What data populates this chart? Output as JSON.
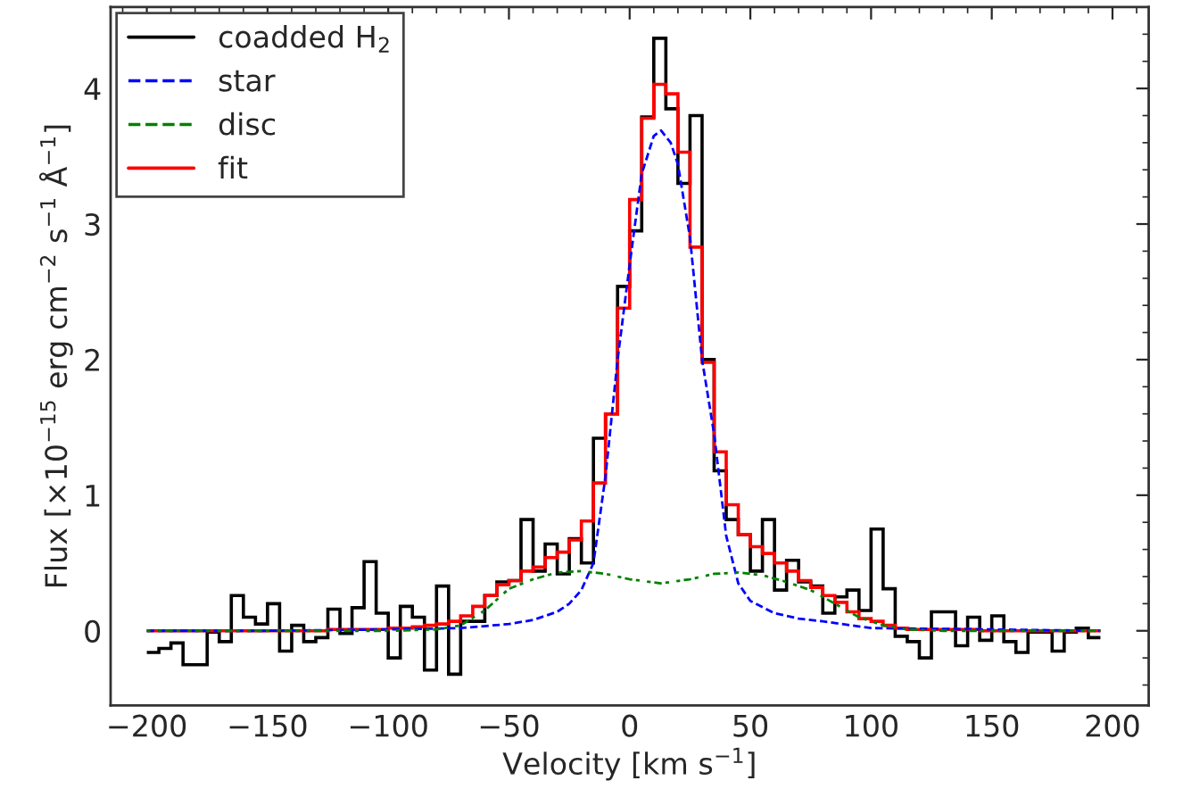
{
  "chart_data": {
    "type": "line",
    "xlabel": "Velocity [km s$^{−1}$]",
    "ylabel": "Flux [×10$^{−15}$ erg cm$^{−2}$ s$^{−1}$ Å$^{−1}$]",
    "xlim": [
      -215,
      215
    ],
    "ylim": [
      -0.55,
      4.6
    ],
    "xticks": [
      -200,
      -150,
      -100,
      -50,
      0,
      50,
      100,
      150,
      200
    ],
    "yticks": [
      0,
      1,
      2,
      3,
      4
    ],
    "legend": "top left",
    "grid": false,
    "series": [
      {
        "name": "coadded H$_{2}$",
        "type": "histogram",
        "color": "#000000",
        "line_style": "solid",
        "bins": [
          -200,
          -195,
          -190,
          -185,
          -180,
          -175,
          -170,
          -165,
          -160,
          -155,
          -150,
          -145,
          -140,
          -135,
          -130,
          -125,
          -120,
          -115,
          -110,
          -105,
          -100,
          -95,
          -90,
          -85,
          -80,
          -75,
          -70,
          -65,
          -60,
          -55,
          -50,
          -45,
          -40,
          -35,
          -30,
          -25,
          -20,
          -15,
          -10,
          -5,
          0,
          5,
          10,
          15,
          20,
          25,
          30,
          35,
          40,
          45,
          50,
          55,
          60,
          65,
          70,
          75,
          80,
          85,
          90,
          95,
          100,
          105,
          110,
          115,
          120,
          125,
          130,
          135,
          140,
          145,
          150,
          155,
          160,
          165,
          170,
          175,
          180,
          185,
          190,
          195
        ],
        "values": [
          -0.16,
          -0.13,
          -0.09,
          -0.25,
          -0.25,
          -0.01,
          -0.08,
          0.26,
          0.1,
          0.05,
          0.2,
          -0.15,
          0.04,
          -0.08,
          -0.05,
          0.16,
          -0.02,
          0.17,
          0.51,
          0.13,
          -0.2,
          0.18,
          0.1,
          -0.29,
          0.33,
          -0.32,
          0.07,
          0.07,
          0.26,
          0.36,
          0.37,
          0.82,
          0.44,
          0.64,
          0.42,
          0.68,
          0.5,
          1.42,
          1.6,
          2.54,
          2.95,
          3.79,
          4.37,
          3.85,
          3.3,
          3.8,
          2.0,
          1.18,
          0.82,
          0.71,
          0.44,
          0.82,
          0.3,
          0.52,
          0.36,
          0.33,
          0.13,
          0.25,
          0.3,
          0.15,
          0.75,
          0.31,
          -0.04,
          -0.08,
          -0.2,
          0.14,
          0.14,
          -0.11,
          0.1,
          -0.07,
          0.11,
          -0.08,
          -0.16,
          -0.01,
          -0.01,
          -0.15,
          -0.01,
          0.02,
          -0.05
        ]
      },
      {
        "name": "star",
        "color": "#0000ff",
        "line_style": "dashed",
        "x": [
          -200,
          -150,
          -100,
          -70,
          -50,
          -40,
          -30,
          -25,
          -20,
          -15,
          -10,
          -5,
          0,
          5,
          10,
          13,
          17,
          20,
          25,
          30,
          35,
          40,
          45,
          50,
          60,
          70,
          80,
          100,
          150,
          195
        ],
        "values": [
          0.0,
          0.0,
          0.01,
          0.02,
          0.05,
          0.08,
          0.14,
          0.2,
          0.3,
          0.5,
          1.14,
          2.0,
          2.7,
          3.37,
          3.65,
          3.69,
          3.6,
          3.44,
          2.9,
          2.0,
          1.45,
          0.7,
          0.35,
          0.22,
          0.13,
          0.09,
          0.07,
          0.02,
          0.01,
          0.0
        ]
      },
      {
        "name": "disc",
        "color": "#008000",
        "line_style": "dashed",
        "x": [
          -200,
          -100,
          -80,
          -70,
          -60,
          -50,
          -40,
          -30,
          -20,
          -10,
          0,
          13,
          25,
          35,
          45,
          55,
          65,
          75,
          85,
          95,
          105,
          115,
          130,
          195
        ],
        "values": [
          0.0,
          0.0,
          0.01,
          0.04,
          0.15,
          0.31,
          0.38,
          0.43,
          0.44,
          0.42,
          0.38,
          0.35,
          0.38,
          0.42,
          0.43,
          0.41,
          0.36,
          0.3,
          0.2,
          0.1,
          0.04,
          0.01,
          0.0,
          0.0
        ]
      },
      {
        "name": "fit",
        "type": "histogram",
        "color": "#ff0000",
        "line_style": "solid",
        "bins": [
          -200,
          -195,
          -190,
          -185,
          -180,
          -175,
          -170,
          -165,
          -160,
          -155,
          -150,
          -145,
          -140,
          -135,
          -130,
          -125,
          -120,
          -115,
          -110,
          -105,
          -100,
          -95,
          -90,
          -85,
          -80,
          -75,
          -70,
          -65,
          -60,
          -55,
          -50,
          -45,
          -40,
          -35,
          -30,
          -25,
          -20,
          -15,
          -10,
          -5,
          0,
          5,
          10,
          15,
          20,
          25,
          30,
          35,
          40,
          45,
          50,
          55,
          60,
          65,
          70,
          75,
          80,
          85,
          90,
          95,
          100,
          105,
          110,
          115,
          120,
          125,
          130,
          135,
          140,
          145,
          150,
          155,
          160,
          165,
          170,
          175,
          180,
          185,
          190,
          195
        ],
        "values": [
          0.0,
          0.0,
          0.0,
          0.0,
          0.0,
          0.0,
          0.0,
          0.0,
          0.0,
          0.0,
          0.0,
          0.0,
          0.0,
          0.0,
          0.0,
          0.01,
          0.01,
          0.01,
          0.01,
          0.01,
          0.02,
          0.02,
          0.03,
          0.04,
          0.05,
          0.07,
          0.11,
          0.18,
          0.26,
          0.34,
          0.37,
          0.44,
          0.47,
          0.54,
          0.58,
          0.67,
          0.81,
          1.09,
          1.6,
          2.38,
          3.18,
          3.78,
          4.03,
          3.96,
          3.53,
          2.83,
          1.98,
          1.32,
          0.93,
          0.71,
          0.62,
          0.57,
          0.5,
          0.44,
          0.37,
          0.32,
          0.26,
          0.21,
          0.14,
          0.09,
          0.07,
          0.04,
          0.02,
          0.01,
          0.01,
          0.01,
          0.01,
          0.01,
          0.01,
          0.0,
          0.0,
          0.0,
          0.0,
          0.0,
          0.0,
          0.0,
          0.0,
          0.0,
          0.0
        ]
      }
    ]
  }
}
